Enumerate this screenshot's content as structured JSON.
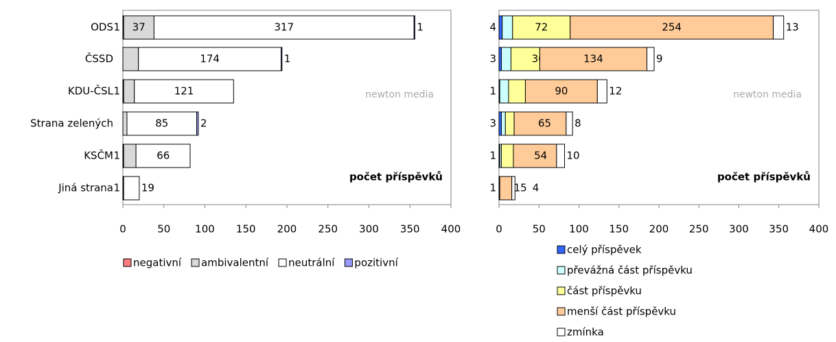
{
  "chart_data": [
    {
      "type": "bar",
      "orientation": "horizontal",
      "stacked": true,
      "categories": [
        "ODS",
        "ČSSD",
        "KDU-ČSL",
        "Strana zelených",
        "KSČM",
        "Jiná strana"
      ],
      "series": [
        {
          "name": "negativní",
          "color": "#ff7c80",
          "values": [
            1,
            null,
            1,
            null,
            1,
            1
          ]
        },
        {
          "name": "ambivalentní",
          "color": "#d9d9d9",
          "values": [
            37,
            19,
            13,
            5,
            15,
            null
          ]
        },
        {
          "name": "neutrální",
          "color": "#ffffff",
          "values": [
            317,
            174,
            121,
            85,
            66,
            19
          ]
        },
        {
          "name": "pozitivní",
          "color": "#9999ff",
          "values": [
            1,
            1,
            null,
            2,
            null,
            null
          ]
        }
      ],
      "xlim": [
        0,
        400
      ],
      "xticks": [
        0,
        50,
        100,
        150,
        200,
        250,
        300,
        350,
        400
      ],
      "annotation": "počet příspěvků",
      "watermark": "newton media",
      "legend": "bottom"
    },
    {
      "type": "bar",
      "orientation": "horizontal",
      "stacked": true,
      "series": [
        {
          "name": "celý příspěvek",
          "color": "#3366ff",
          "values": [
            4,
            3,
            1,
            3,
            1,
            1
          ]
        },
        {
          "name": "převážná část příspěvku",
          "color": "#ccffff",
          "values": [
            13,
            12,
            11,
            5,
            2,
            null
          ]
        },
        {
          "name": "část příspěvku",
          "color": "#ffff99",
          "values": [
            72,
            36,
            21,
            11,
            15,
            null
          ]
        },
        {
          "name": "menší část příspěvku",
          "color": "#ffcc99",
          "values": [
            254,
            134,
            90,
            65,
            54,
            15
          ]
        },
        {
          "name": "zmínka",
          "color": "#ffffff",
          "values": [
            13,
            9,
            12,
            8,
            10,
            4
          ]
        }
      ],
      "xlim": [
        0,
        400
      ],
      "xticks": [
        0,
        50,
        100,
        150,
        200,
        250,
        300,
        350,
        400
      ],
      "annotation": "počet příspěvků",
      "watermark": "newton media",
      "legend": "bottom"
    }
  ]
}
